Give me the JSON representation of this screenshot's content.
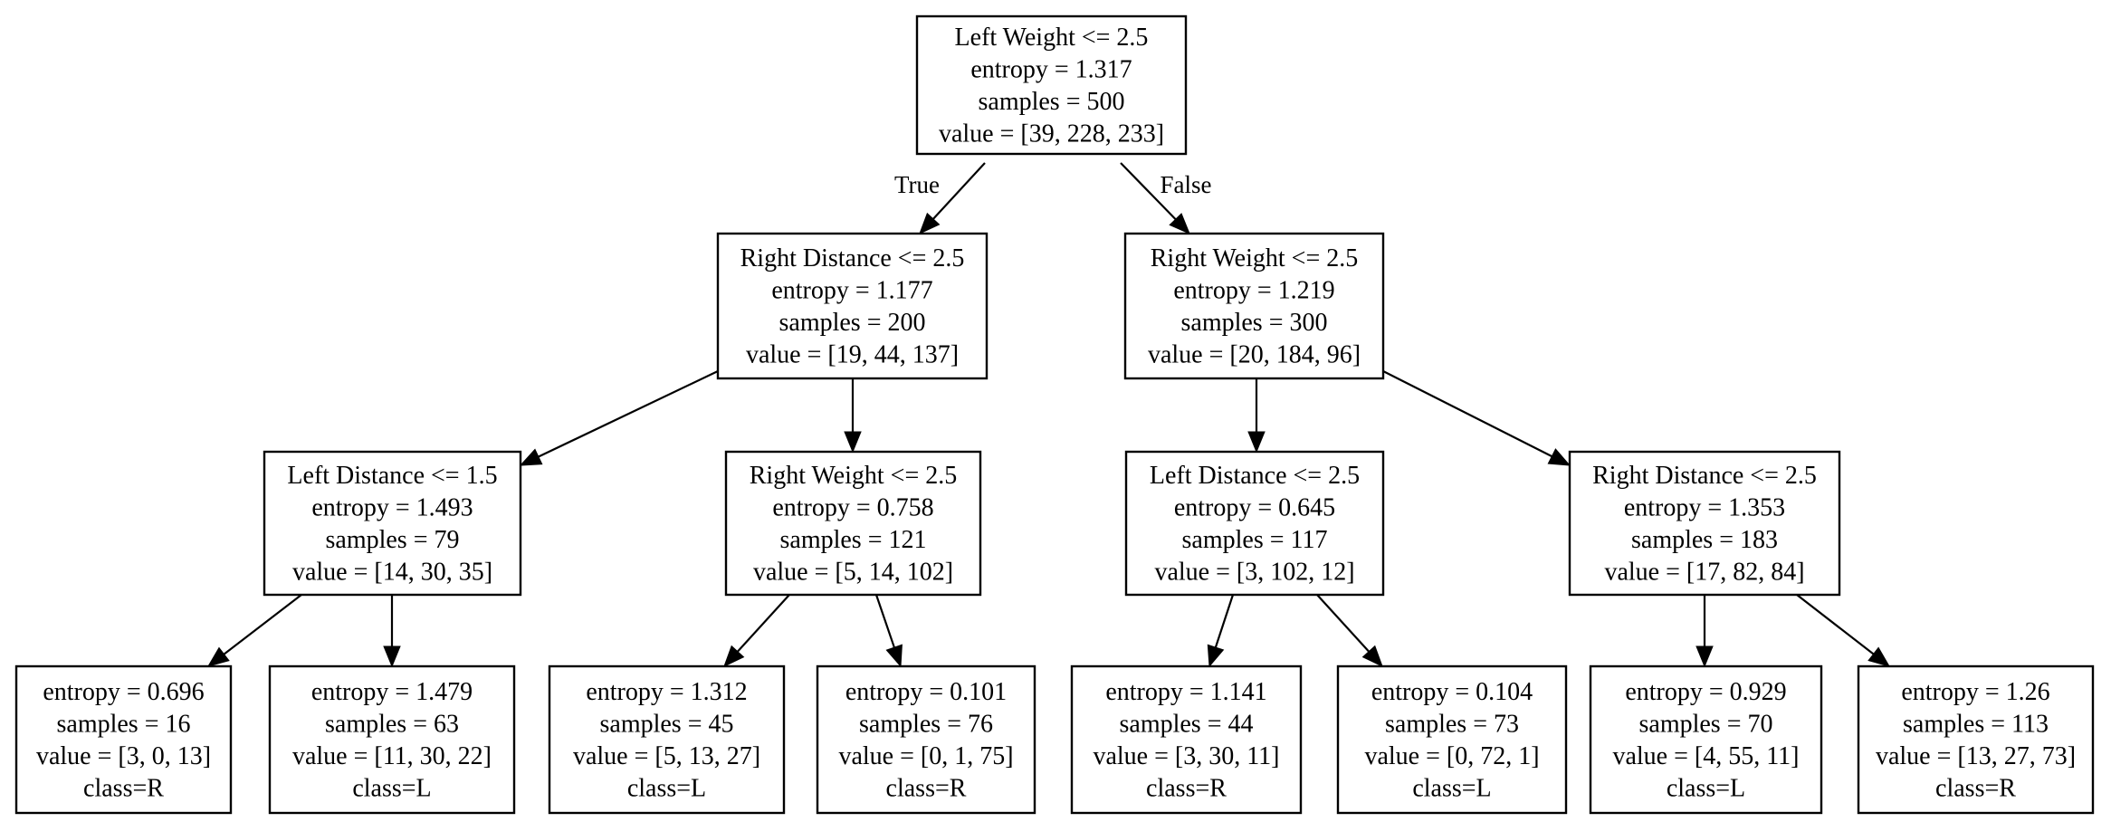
{
  "nodes": [
    {
      "id": "root",
      "lines": [
        "Left Weight <= 2.5",
        "entropy = 1.317",
        "samples = 500",
        "value = [39, 228, 233]"
      ]
    },
    {
      "id": "n1",
      "lines": [
        "Right Distance <= 2.5",
        "entropy = 1.177",
        "samples = 200",
        "value = [19, 44, 137]"
      ]
    },
    {
      "id": "n2",
      "lines": [
        "Right Weight <= 2.5",
        "entropy = 1.219",
        "samples = 300",
        "value = [20, 184, 96]"
      ]
    },
    {
      "id": "n3",
      "lines": [
        "Left Distance <= 1.5",
        "entropy = 1.493",
        "samples = 79",
        "value = [14, 30, 35]"
      ]
    },
    {
      "id": "n4",
      "lines": [
        "Right Weight <= 2.5",
        "entropy = 0.758",
        "samples = 121",
        "value = [5, 14, 102]"
      ]
    },
    {
      "id": "n5",
      "lines": [
        "Left Distance <= 2.5",
        "entropy = 0.645",
        "samples = 117",
        "value = [3, 102, 12]"
      ]
    },
    {
      "id": "n6",
      "lines": [
        "Right Distance <= 2.5",
        "entropy = 1.353",
        "samples = 183",
        "value = [17, 82, 84]"
      ]
    },
    {
      "id": "l1",
      "lines": [
        "entropy = 0.696",
        "samples = 16",
        "value = [3, 0, 13]",
        "class=R"
      ]
    },
    {
      "id": "l2",
      "lines": [
        "entropy = 1.479",
        "samples = 63",
        "value = [11, 30, 22]",
        "class=L"
      ]
    },
    {
      "id": "l3",
      "lines": [
        "entropy = 1.312",
        "samples = 45",
        "value = [5, 13, 27]",
        "class=L"
      ]
    },
    {
      "id": "l4",
      "lines": [
        "entropy = 0.101",
        "samples = 76",
        "value = [0, 1, 75]",
        "class=R"
      ]
    },
    {
      "id": "l5",
      "lines": [
        "entropy = 1.141",
        "samples = 44",
        "value = [3, 30, 11]",
        "class=R"
      ]
    },
    {
      "id": "l6",
      "lines": [
        "entropy = 0.104",
        "samples = 73",
        "value = [0, 72, 1]",
        "class=L"
      ]
    },
    {
      "id": "l7",
      "lines": [
        "entropy = 0.929",
        "samples = 70",
        "value = [4, 55, 11]",
        "class=L"
      ]
    },
    {
      "id": "l8",
      "lines": [
        "entropy = 1.26",
        "samples = 113",
        "value = [13, 27, 73]",
        "class=R"
      ]
    }
  ],
  "edges": [
    {
      "from": "root",
      "to": "n1",
      "label": "True"
    },
    {
      "from": "root",
      "to": "n2",
      "label": "False"
    },
    {
      "from": "n1",
      "to": "n3",
      "label": ""
    },
    {
      "from": "n1",
      "to": "n4",
      "label": ""
    },
    {
      "from": "n2",
      "to": "n5",
      "label": ""
    },
    {
      "from": "n2",
      "to": "n6",
      "label": ""
    },
    {
      "from": "n3",
      "to": "l1",
      "label": ""
    },
    {
      "from": "n3",
      "to": "l2",
      "label": ""
    },
    {
      "from": "n4",
      "to": "l3",
      "label": ""
    },
    {
      "from": "n4",
      "to": "l4",
      "label": ""
    },
    {
      "from": "n5",
      "to": "l5",
      "label": ""
    },
    {
      "from": "n5",
      "to": "l6",
      "label": ""
    },
    {
      "from": "n6",
      "to": "l7",
      "label": ""
    },
    {
      "from": "n6",
      "to": "l8",
      "label": ""
    }
  ]
}
